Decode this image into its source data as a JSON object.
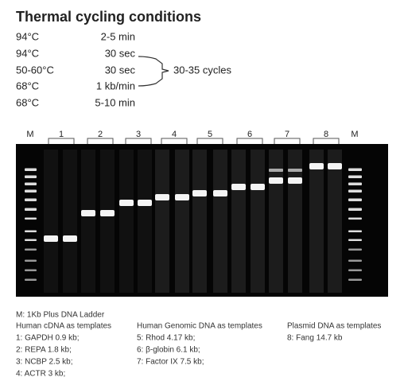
{
  "title": "Thermal cycling conditions",
  "steps": [
    {
      "temp": "94°C",
      "time": "2-5 min"
    },
    {
      "temp": "94°C",
      "time": "30 sec"
    },
    {
      "temp": "50-60°C",
      "time": "30 sec"
    },
    {
      "temp": "68°C",
      "time": "1 kb/min"
    },
    {
      "temp": "68°C",
      "time": "5-10 min"
    }
  ],
  "cycles": "30-35 cycles",
  "gel": {
    "lanes": [
      "M",
      "1",
      "2",
      "3",
      "4",
      "5",
      "6",
      "7",
      "8",
      "M"
    ]
  },
  "legend": {
    "ladder": "M: 1Kb Plus DNA Ladder",
    "groups": [
      {
        "heading": "Human cDNA as templates",
        "items": [
          "1: GAPDH 0.9 kb;",
          "2: REPA 1.8 kb;",
          "3: NCBP 2.5 kb;",
          "4: ACTR 3 kb;"
        ]
      },
      {
        "heading": "Human Genomic DNA as templates",
        "items": [
          "5: Rhod 4.17 kb;",
          "6: β-globin 6.1 kb;",
          "7: Factor IX 7.5 kb;"
        ]
      },
      {
        "heading": "Plasmid DNA as templates",
        "items": [
          "8: Fang 14.7 kb"
        ]
      }
    ]
  }
}
